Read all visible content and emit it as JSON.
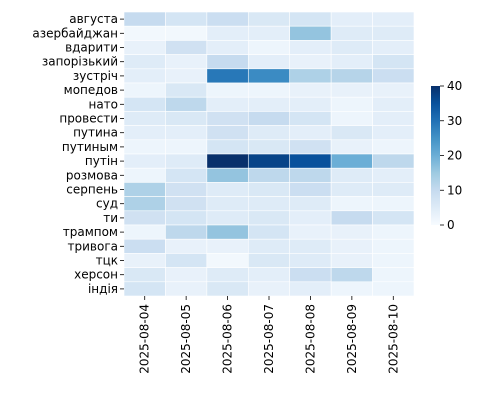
{
  "chart_data": {
    "type": "heatmap",
    "title": "",
    "xlabel": "",
    "ylabel": "",
    "x": [
      "2025-08-04",
      "2025-08-05",
      "2025-08-06",
      "2025-08-07",
      "2025-08-08",
      "2025-08-09",
      "2025-08-10"
    ],
    "y": [
      "августа",
      "азербайджан",
      "вдарити",
      "запорізький",
      "зустріч",
      "мопедов",
      "нато",
      "провести",
      "путина",
      "путиным",
      "путін",
      "розмова",
      "серпень",
      "суд",
      "ти",
      "трампом",
      "тривога",
      "тцк",
      "херсон",
      "індія"
    ],
    "values": [
      [
        10,
        7,
        9,
        6,
        7,
        4,
        4
      ],
      [
        1,
        1,
        4,
        4,
        16,
        5,
        5
      ],
      [
        3,
        8,
        4,
        2,
        4,
        5,
        4
      ],
      [
        5,
        3,
        10,
        4,
        3,
        4,
        7
      ],
      [
        4,
        3,
        29,
        26,
        13,
        12,
        9
      ],
      [
        2,
        6,
        2,
        2,
        3,
        3,
        3
      ],
      [
        7,
        11,
        4,
        4,
        4,
        2,
        4
      ],
      [
        5,
        6,
        8,
        10,
        7,
        2,
        4
      ],
      [
        4,
        4,
        8,
        5,
        4,
        6,
        4
      ],
      [
        2,
        2,
        7,
        6,
        8,
        3,
        2
      ],
      [
        4,
        5,
        40,
        37,
        35,
        20,
        11
      ],
      [
        2,
        7,
        16,
        11,
        11,
        5,
        4
      ],
      [
        13,
        8,
        5,
        6,
        9,
        5,
        5
      ],
      [
        13,
        8,
        5,
        5,
        5,
        2,
        2
      ],
      [
        8,
        7,
        5,
        6,
        4,
        10,
        7
      ],
      [
        2,
        11,
        16,
        7,
        3,
        3,
        2
      ],
      [
        9,
        3,
        3,
        5,
        5,
        3,
        2
      ],
      [
        3,
        7,
        1,
        6,
        5,
        3,
        2
      ],
      [
        6,
        3,
        5,
        4,
        9,
        11,
        2
      ],
      [
        7,
        3,
        6,
        3,
        4,
        2,
        2
      ]
    ],
    "colorbar": {
      "min": 0,
      "max": 40,
      "ticks": [
        0,
        10,
        20,
        30,
        40
      ]
    },
    "colormap": {
      "low": "#f7fbff",
      "mid": "#6baed6",
      "high": "#08306b"
    },
    "grid": false
  }
}
